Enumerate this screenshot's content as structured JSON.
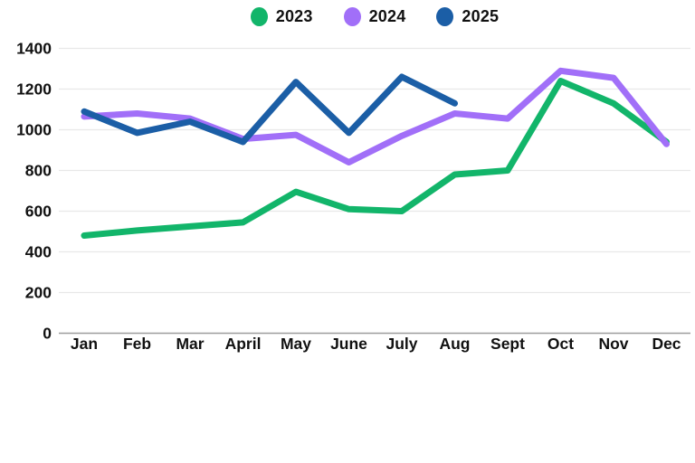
{
  "chart_data": {
    "type": "line",
    "title": "",
    "xlabel": "",
    "ylabel": "",
    "categories": [
      "Jan",
      "Feb",
      "Mar",
      "April",
      "May",
      "June",
      "July",
      "Aug",
      "Sept",
      "Oct",
      "Nov",
      "Dec"
    ],
    "series": [
      {
        "name": "2023",
        "color": "#12b56a",
        "values": [
          480,
          505,
          525,
          545,
          695,
          610,
          600,
          780,
          800,
          1240,
          1130,
          940
        ]
      },
      {
        "name": "2024",
        "color": "#a16ff8",
        "values": [
          1065,
          1080,
          1055,
          955,
          975,
          840,
          970,
          1080,
          1055,
          1290,
          1255,
          930
        ]
      },
      {
        "name": "2025",
        "color": "#1b5ea6",
        "values": [
          1090,
          985,
          1040,
          940,
          1235,
          985,
          1260,
          1130
        ]
      }
    ],
    "ylim": [
      0,
      1400
    ],
    "yticks": [
      0,
      200,
      400,
      600,
      800,
      1000,
      1200,
      1400
    ],
    "grid": true,
    "gridline_color": "#e8e8e8",
    "baseline_color": "#9e9e9e",
    "text_color": "#111111",
    "legend_position": "top"
  }
}
